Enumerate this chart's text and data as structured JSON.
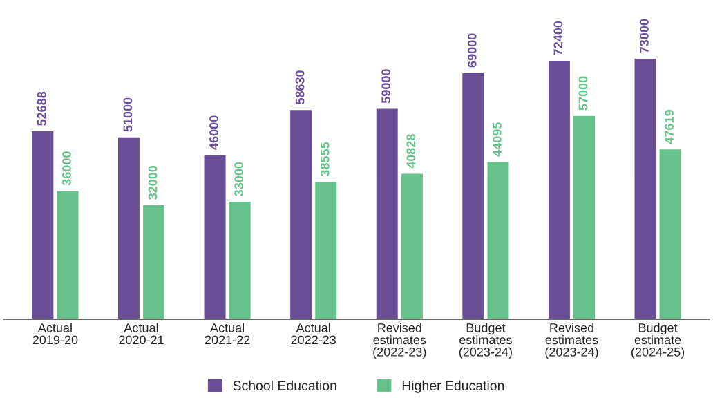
{
  "chart_data": {
    "type": "bar",
    "categories": [
      "Actual\n2019-20",
      "Actual\n2020-21",
      "Actual\n2021-22",
      "Actual\n2022-23",
      "Revised\nestimates\n(2022-23)",
      "Budget\nestimates\n(2023-24)",
      "Revised\nestimates\n(2023-24)",
      "Budget\nestimate\n(2024-25)"
    ],
    "series": [
      {
        "name": "School Education",
        "color": "#6a4f96",
        "values": [
          52688,
          51000,
          46000,
          58630,
          59000,
          69000,
          72400,
          73000
        ]
      },
      {
        "name": "Higher Education",
        "color": "#66c28a",
        "values": [
          36000,
          32000,
          33000,
          38555,
          40828,
          44095,
          57000,
          47619
        ]
      }
    ],
    "data_labels": true,
    "tick_labels": "x",
    "grid": false,
    "legend": "bottom"
  }
}
